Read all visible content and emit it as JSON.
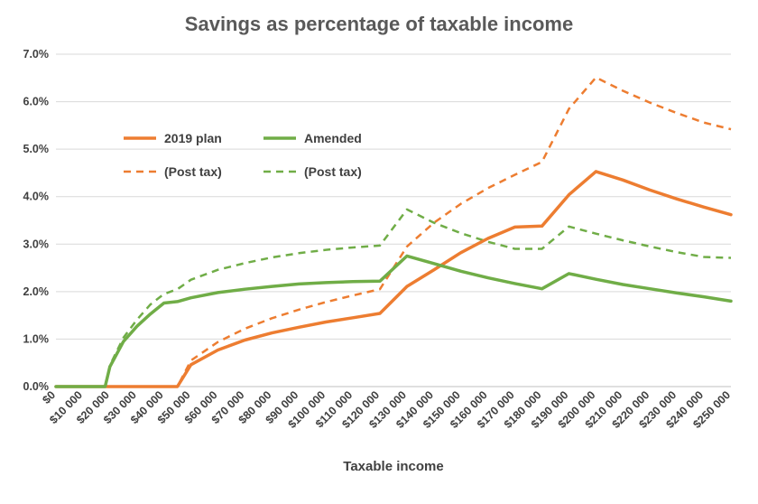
{
  "chart_data": {
    "type": "line",
    "title": "Savings as percentage of taxable income",
    "xlabel": "Taxable income",
    "ylabel": "",
    "x": [
      0,
      10000,
      20000,
      30000,
      40000,
      50000,
      60000,
      70000,
      80000,
      90000,
      100000,
      110000,
      120000,
      130000,
      140000,
      150000,
      160000,
      170000,
      180000,
      190000,
      200000,
      210000,
      220000,
      230000,
      240000,
      250000
    ],
    "x_tick_labels": [
      "$0",
      "$10 000",
      "$20 000",
      "$30 000",
      "$40 000",
      "$50 000",
      "$60 000",
      "$70 000",
      "$80 000",
      "$90 000",
      "$100 000",
      "$110 000",
      "$120 000",
      "$130 000",
      "$140 000",
      "$150 000",
      "$160 000",
      "$170 000",
      "$180 000",
      "$190 000",
      "$200 000",
      "$210 000",
      "$220 000",
      "$230 000",
      "$240 000",
      "$250 000"
    ],
    "xlim": [
      0,
      250000
    ],
    "ylim": [
      0,
      0.07
    ],
    "y_tick_values": [
      0,
      0.01,
      0.02,
      0.03,
      0.04,
      0.05,
      0.06,
      0.07
    ],
    "y_tick_labels": [
      "0.0%",
      "1.0%",
      "2.0%",
      "3.0%",
      "4.0%",
      "5.0%",
      "6.0%",
      "7.0%"
    ],
    "grid": true,
    "legend_position": "upper-left, inside plot",
    "series": [
      {
        "name": "2019 plan",
        "color": "#ED7D31",
        "style": "solid",
        "points": [
          [
            0,
            0
          ],
          [
            18200,
            0
          ],
          [
            45000,
            0
          ],
          [
            50000,
            0.0046
          ],
          [
            60000,
            0.0077
          ],
          [
            70000,
            0.0098
          ],
          [
            80000,
            0.0113
          ],
          [
            90000,
            0.0125
          ],
          [
            100000,
            0.0136
          ],
          [
            110000,
            0.0145
          ],
          [
            120000,
            0.0154
          ],
          [
            130000,
            0.0211
          ],
          [
            140000,
            0.0246
          ],
          [
            150000,
            0.0282
          ],
          [
            160000,
            0.0312
          ],
          [
            170000,
            0.0336
          ],
          [
            180000,
            0.0338
          ],
          [
            190000,
            0.0404
          ],
          [
            200000,
            0.0453
          ],
          [
            210000,
            0.0435
          ],
          [
            220000,
            0.0414
          ],
          [
            230000,
            0.0395
          ],
          [
            240000,
            0.0378
          ],
          [
            250000,
            0.0362
          ]
        ]
      },
      {
        "name": "Amended",
        "color": "#70AD47",
        "style": "solid",
        "points": [
          [
            0,
            0
          ],
          [
            18200,
            0
          ],
          [
            20000,
            0.0042
          ],
          [
            25000,
            0.0095
          ],
          [
            30000,
            0.0127
          ],
          [
            35000,
            0.0153
          ],
          [
            40000,
            0.0176
          ],
          [
            45000,
            0.0179
          ],
          [
            50000,
            0.0187
          ],
          [
            60000,
            0.0198
          ],
          [
            70000,
            0.0205
          ],
          [
            80000,
            0.0211
          ],
          [
            90000,
            0.0216
          ],
          [
            100000,
            0.0219
          ],
          [
            110000,
            0.0221
          ],
          [
            120000,
            0.0222
          ],
          [
            130000,
            0.0275
          ],
          [
            140000,
            0.0259
          ],
          [
            150000,
            0.0243
          ],
          [
            160000,
            0.0229
          ],
          [
            170000,
            0.0217
          ],
          [
            180000,
            0.0206
          ],
          [
            190000,
            0.0238
          ],
          [
            200000,
            0.0226
          ],
          [
            210000,
            0.0215
          ],
          [
            220000,
            0.0206
          ],
          [
            230000,
            0.0197
          ],
          [
            240000,
            0.0189
          ],
          [
            250000,
            0.018
          ]
        ]
      },
      {
        "name": "(Post tax)",
        "color": "#ED7D31",
        "style": "dashed",
        "points": [
          [
            0,
            0
          ],
          [
            18200,
            0
          ],
          [
            45000,
            0
          ],
          [
            50000,
            0.0055
          ],
          [
            60000,
            0.0094
          ],
          [
            70000,
            0.0122
          ],
          [
            80000,
            0.0144
          ],
          [
            90000,
            0.0162
          ],
          [
            100000,
            0.0178
          ],
          [
            110000,
            0.0192
          ],
          [
            120000,
            0.0205
          ],
          [
            130000,
            0.0295
          ],
          [
            140000,
            0.0345
          ],
          [
            150000,
            0.0385
          ],
          [
            160000,
            0.0418
          ],
          [
            170000,
            0.0446
          ],
          [
            180000,
            0.0473
          ],
          [
            190000,
            0.0585
          ],
          [
            200000,
            0.0651
          ],
          [
            210000,
            0.0623
          ],
          [
            220000,
            0.0598
          ],
          [
            230000,
            0.0576
          ],
          [
            240000,
            0.0556
          ],
          [
            250000,
            0.0542
          ]
        ]
      },
      {
        "name": "(Post tax)",
        "color": "#70AD47",
        "style": "dashed",
        "points": [
          [
            0,
            0
          ],
          [
            18200,
            0
          ],
          [
            20000,
            0.0045
          ],
          [
            25000,
            0.0103
          ],
          [
            30000,
            0.0141
          ],
          [
            35000,
            0.0173
          ],
          [
            40000,
            0.0195
          ],
          [
            45000,
            0.0205
          ],
          [
            50000,
            0.0225
          ],
          [
            60000,
            0.0246
          ],
          [
            70000,
            0.026
          ],
          [
            80000,
            0.0272
          ],
          [
            90000,
            0.0281
          ],
          [
            100000,
            0.0288
          ],
          [
            110000,
            0.0293
          ],
          [
            120000,
            0.0297
          ],
          [
            130000,
            0.0373
          ],
          [
            140000,
            0.0345
          ],
          [
            150000,
            0.0323
          ],
          [
            160000,
            0.0305
          ],
          [
            170000,
            0.029
          ],
          [
            180000,
            0.029
          ],
          [
            190000,
            0.0337
          ],
          [
            200000,
            0.0322
          ],
          [
            210000,
            0.0308
          ],
          [
            220000,
            0.0295
          ],
          [
            230000,
            0.0283
          ],
          [
            240000,
            0.0273
          ],
          [
            250000,
            0.0271
          ]
        ]
      }
    ]
  }
}
